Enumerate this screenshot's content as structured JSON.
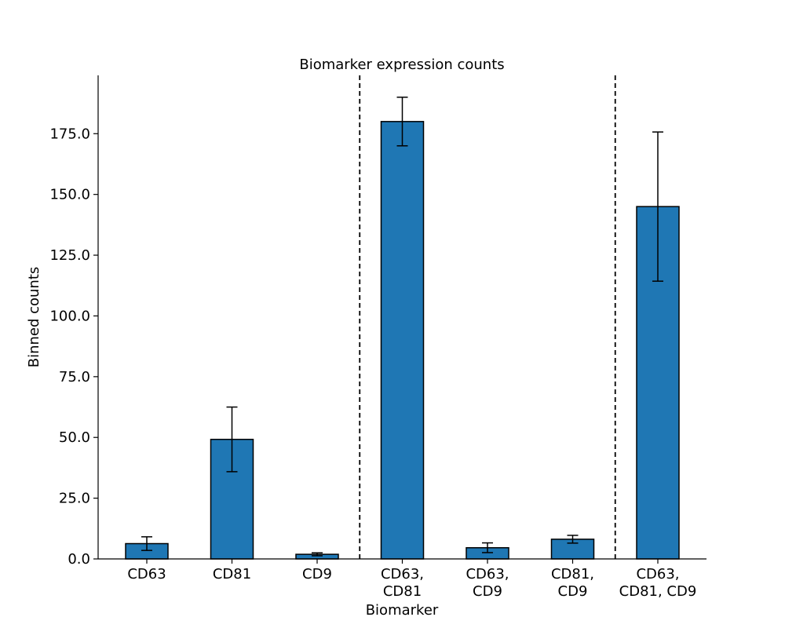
{
  "chart_data": {
    "type": "bar",
    "title": "Biomarker expression counts",
    "xlabel": "Biomarker",
    "ylabel": "Binned counts",
    "categories": [
      [
        "CD63"
      ],
      [
        "CD81"
      ],
      [
        "CD9"
      ],
      [
        "CD63,",
        "CD81"
      ],
      [
        "CD63,",
        "CD9"
      ],
      [
        "CD81,",
        "CD9"
      ],
      [
        "CD63,",
        "CD81, CD9"
      ]
    ],
    "values": [
      6.3,
      49.2,
      1.9,
      180.0,
      4.6,
      8.1,
      145.0
    ],
    "errors": [
      2.8,
      13.3,
      0.6,
      10.0,
      2.0,
      1.6,
      30.7
    ],
    "yticks": [
      0.0,
      25.0,
      50.0,
      75.0,
      100.0,
      125.0,
      150.0,
      175.0
    ],
    "ytick_labels": [
      "0.0",
      "25.0",
      "50.0",
      "75.0",
      "100.0",
      "125.0",
      "150.0",
      "175.0"
    ],
    "ylim": [
      0,
      199
    ],
    "group_dividers_after": [
      3,
      6
    ],
    "bar_color": "#1f77b4",
    "edge_color": "#000000",
    "grid": false
  }
}
